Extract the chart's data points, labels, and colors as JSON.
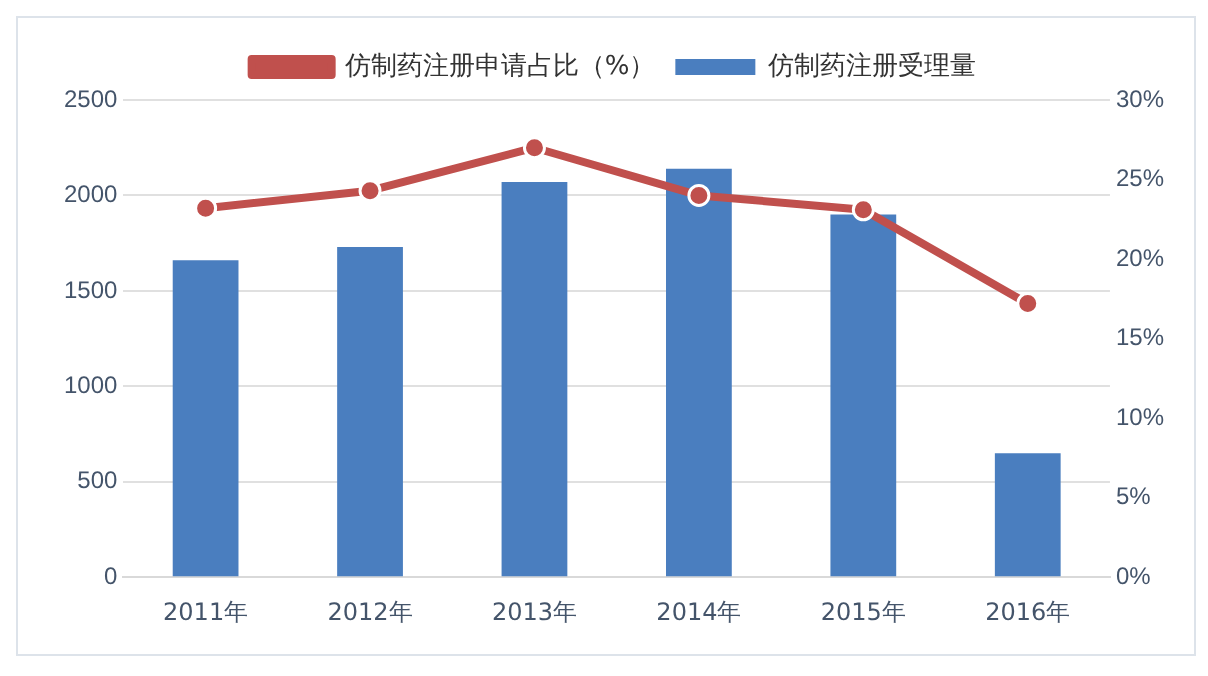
{
  "chart_data": {
    "type": "bar",
    "categories": [
      "2011年",
      "2012年",
      "2013年",
      "2014年",
      "2015年",
      "2016年"
    ],
    "series": [
      {
        "name": "仿制药注册受理量",
        "color": "#4a7ebf",
        "values": [
          1660,
          1730,
          2070,
          2140,
          1900,
          650
        ]
      },
      {
        "name": "仿制药注册申请占比（%）",
        "type": "line",
        "axis": "y2",
        "color": "#c0504d",
        "values": [
          23.2,
          24.3,
          27,
          24,
          23.1,
          17.2
        ]
      }
    ],
    "ylim": [
      0,
      2500
    ],
    "yticks": [
      0,
      500,
      1000,
      1500,
      2000,
      2500
    ],
    "y2lim": [
      0,
      30
    ],
    "y2ticks": [
      {
        "value": 0,
        "label": "0%"
      },
      {
        "value": 5,
        "label": "5%"
      },
      {
        "value": 10,
        "label": "10%"
      },
      {
        "value": 15,
        "label": "15%"
      },
      {
        "value": 20,
        "label": "20%"
      },
      {
        "value": 25,
        "label": "25%"
      },
      {
        "value": 30,
        "label": "30%"
      }
    ],
    "grid": "y",
    "legend": "top",
    "marker": "circle"
  }
}
